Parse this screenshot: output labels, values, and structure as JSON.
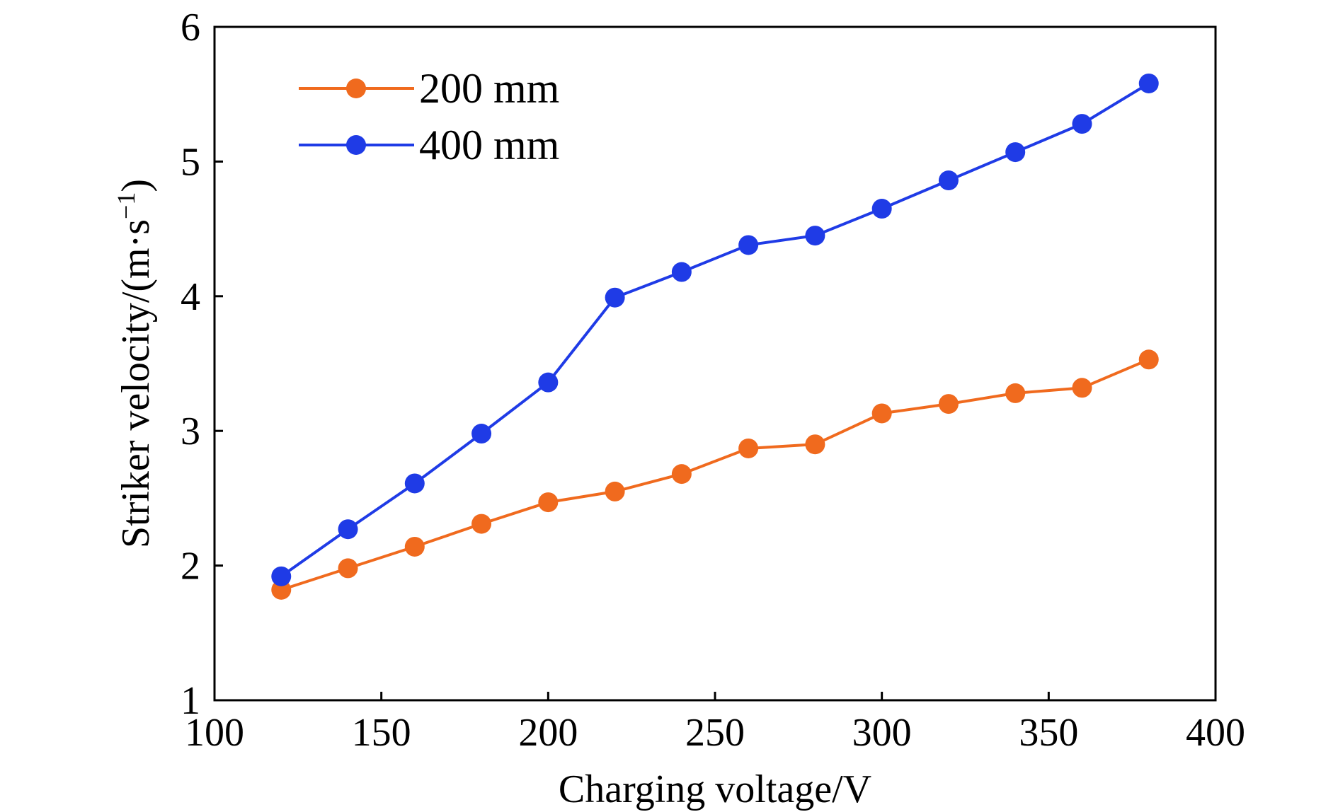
{
  "chart_data": {
    "type": "line",
    "title": "",
    "xlabel": "Charging voltage/V",
    "ylabel_main": "Striker velocity/(m·s",
    "ylabel_sup": "−1",
    "ylabel_close": ")",
    "xlim": [
      100,
      400
    ],
    "ylim": [
      1,
      6
    ],
    "xticks": [
      100,
      150,
      200,
      250,
      300,
      350,
      400
    ],
    "yticks": [
      1,
      2,
      3,
      4,
      5,
      6
    ],
    "grid": false,
    "legend_position": "top-left",
    "x": [
      120,
      140,
      160,
      180,
      200,
      220,
      240,
      260,
      280,
      300,
      320,
      340,
      360,
      380
    ],
    "series": [
      {
        "name": "200 mm",
        "color": "#f06a1e",
        "values": [
          1.82,
          1.98,
          2.14,
          2.31,
          2.47,
          2.55,
          2.68,
          2.87,
          2.9,
          3.13,
          3.2,
          3.28,
          3.32,
          3.53
        ]
      },
      {
        "name": "400 mm",
        "color": "#1f3be6",
        "values": [
          1.92,
          2.27,
          2.61,
          2.98,
          3.36,
          3.99,
          4.18,
          4.38,
          4.45,
          4.65,
          4.86,
          5.07,
          5.28,
          5.58
        ]
      }
    ]
  }
}
